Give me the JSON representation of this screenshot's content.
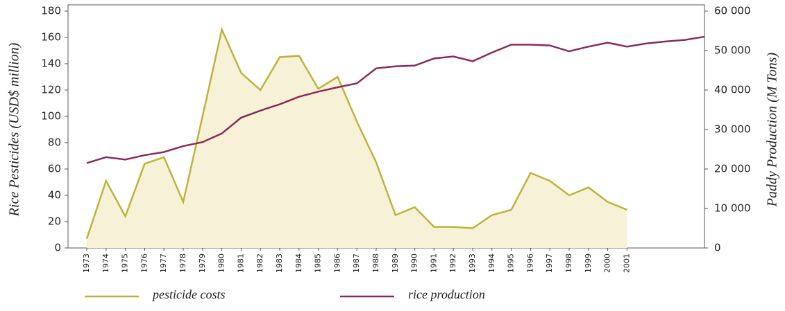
{
  "chart_data": {
    "type": "line",
    "y_label": "Rice Pesticides (USD$ million)",
    "y2_label": "Paddy Production (M Tons)",
    "categories": [
      "1973",
      "1974",
      "1975",
      "1976",
      "1977",
      "1978",
      "1979",
      "1980",
      "1981",
      "1982",
      "1983",
      "1984",
      "1985",
      "1986",
      "1987",
      "1988",
      "1989",
      "1990",
      "1991",
      "1992",
      "1993",
      "1994",
      "1995",
      "1996",
      "1997",
      "1998",
      "1999",
      "2000",
      "2001",
      null,
      null,
      null,
      null
    ],
    "series": [
      {
        "name": "pesticide costs",
        "color": "#bdb33a",
        "area_color": "#f7f1d8",
        "values": [
          7,
          51,
          24,
          64,
          69,
          35,
          100,
          166,
          133,
          120,
          145,
          146,
          121,
          130,
          96,
          65,
          25,
          31,
          16,
          16,
          15,
          25,
          29,
          57,
          51,
          40,
          46,
          35,
          29,
          null,
          null,
          null,
          null
        ]
      },
      {
        "name": "rice production",
        "color": "#8b2a5a",
        "axis": "y2",
        "values": [
          21500,
          23000,
          22400,
          23500,
          24300,
          25800,
          26800,
          29000,
          33000,
          34800,
          36400,
          38300,
          39600,
          40700,
          41700,
          45500,
          46000,
          46200,
          48000,
          48500,
          47300,
          49500,
          51500,
          51500,
          51300,
          49800,
          51000,
          52000,
          51000,
          51800,
          52300,
          52700,
          53500
        ]
      }
    ],
    "ylim": [
      0,
      180
    ],
    "yticks": [
      0,
      20,
      40,
      60,
      80,
      100,
      120,
      140,
      160,
      180
    ],
    "y2lim": [
      0,
      60000
    ],
    "y2ticks": [
      0,
      {
        "value": 10000,
        "label": "10 000"
      },
      {
        "value": 20000,
        "label": "20 000"
      },
      {
        "value": 30000,
        "label": "30 000"
      },
      {
        "value": 40000,
        "label": "40 000"
      },
      {
        "value": 50000,
        "label": "50 000"
      },
      {
        "value": 60000,
        "label": "60 000"
      }
    ]
  }
}
